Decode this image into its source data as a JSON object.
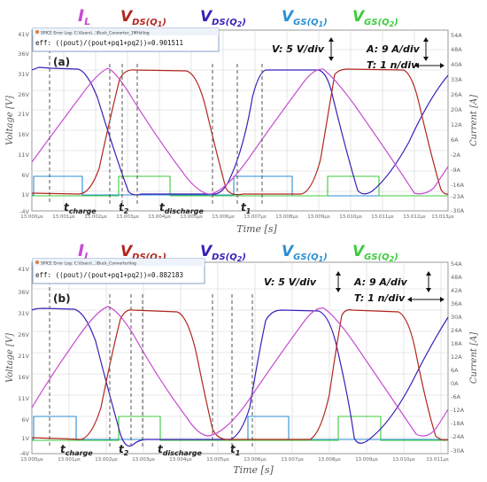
{
  "legend": {
    "il": {
      "main": "I",
      "sub": "L",
      "color": "#c74ccf"
    },
    "vds1": {
      "main": "V",
      "sub": "DS(Q",
      "sub2": "1",
      "close": ")",
      "color": "#b3261e"
    },
    "vds2": {
      "main": "V",
      "sub": "DS(Q",
      "sub2": "2",
      "close": ")",
      "color": "#3a1fb8"
    },
    "vgs1": {
      "main": "V",
      "sub": "GS(Q",
      "sub2": "1",
      "close": ")",
      "color": "#2a8fd4"
    },
    "vgs2": {
      "main": "V",
      "sub": "GS(Q",
      "sub2": "2",
      "close": ")",
      "color": "#3ccb3c"
    }
  },
  "panels": [
    {
      "label": "(a)",
      "err_window": {
        "title": "SPICE Error Log: C:\\Users\\...\\Buck_Converter_1MHz\\log",
        "text": "eff: ((pout)/(pout+pq1+pq2))=0.901511"
      },
      "scale_v": "V: 5 V/div",
      "scale_a": "A: 9 A/div",
      "scale_t": "T: 1 n/div",
      "ylabel_left": "Voltage [V]",
      "ylabel_right": "Current [A]",
      "xlabel": "Time [s]",
      "yticks_left": [
        "41V",
        "36V",
        "31V",
        "26V",
        "21V",
        "16V",
        "11V",
        "6V",
        "1V",
        "-4V"
      ],
      "yticks_right": [
        "54A",
        "48A",
        "40A",
        "33A",
        "26A",
        "20A",
        "12A",
        "6A",
        "-2A",
        "-9A",
        "-16A",
        "-23A",
        "-30A"
      ],
      "xticks": [
        "13.000µs",
        "13.001µs",
        "13.002µs",
        "13.003µs",
        "13.004µs",
        "13.005µs",
        "13.006µs",
        "13.007µs",
        "13.008µs",
        "13.009µs",
        "13.010µs",
        "13.011µs",
        "13.012µs",
        "13.013µs"
      ],
      "annotations": [
        {
          "main": "t",
          "sub": "charge"
        },
        {
          "main": "t",
          "sub": "2"
        },
        {
          "main": "t",
          "sub": "discharge"
        },
        {
          "main": "t",
          "sub": "1"
        }
      ]
    },
    {
      "label": "(b)",
      "err_window": {
        "title": "SPICE Error Log: C:\\Users\\...\\Buck_Converter\\log",
        "text": "eff: ((pout)/(pout+pq1+pq2))=0.882183"
      },
      "scale_v": "V: 5 V/div",
      "scale_a": "A: 9 A/div",
      "scale_t": "T: 1 n/div",
      "ylabel_left": "Voltage [V]",
      "ylabel_right": "Current [A]",
      "xlabel": "Time [s]",
      "yticks_left": [
        "41V",
        "36V",
        "31V",
        "26V",
        "21V",
        "16V",
        "11V",
        "6V",
        "1V",
        "-4V"
      ],
      "yticks_right": [
        "54A",
        "48A",
        "42A",
        "36A",
        "30A",
        "24A",
        "18A",
        "12A",
        "6A",
        "0A",
        "-6A",
        "-12A",
        "-18A",
        "-24A",
        "-30A"
      ],
      "xticks": [
        "13.000µs",
        "13.001µs",
        "13.002µs",
        "13.003µs",
        "13.004µs",
        "13.005µs",
        "13.006µs",
        "13.007µs",
        "13.008µs",
        "13.009µs",
        "13.010µs",
        "13.011µs"
      ],
      "annotations": [
        {
          "main": "t",
          "sub": "charge"
        },
        {
          "main": "t",
          "sub": "2"
        },
        {
          "main": "t",
          "sub": "discharge"
        },
        {
          "main": "t",
          "sub": "1"
        }
      ]
    }
  ]
}
